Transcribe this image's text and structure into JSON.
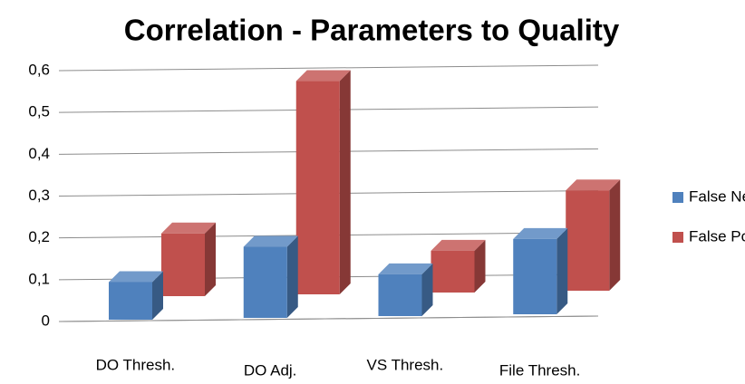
{
  "chart_data": {
    "type": "bar3d",
    "title": "Correlation - Parameters to Quality",
    "categories": [
      "DO Thresh.",
      "DO Adj.",
      "VS Thresh.",
      "File Thresh."
    ],
    "series": [
      {
        "name": "False Neg.",
        "color": "#4f81bd",
        "values": [
          0.09,
          0.17,
          0.1,
          0.18
        ]
      },
      {
        "name": "False Pos.",
        "color": "#c0504d",
        "values": [
          0.15,
          0.51,
          0.1,
          0.24
        ]
      }
    ],
    "ylim": [
      0,
      0.6
    ],
    "yticks": [
      0,
      {
        "value": 0.1,
        "label": "0,1"
      },
      {
        "value": 0.2,
        "label": "0,2"
      },
      {
        "value": 0.3,
        "label": "0,3"
      },
      {
        "value": 0.4,
        "label": "0,4"
      },
      {
        "value": 0.5,
        "label": "0,5"
      },
      {
        "value": 0.6,
        "label": "0,6"
      }
    ],
    "grid": true,
    "legend": "right"
  }
}
